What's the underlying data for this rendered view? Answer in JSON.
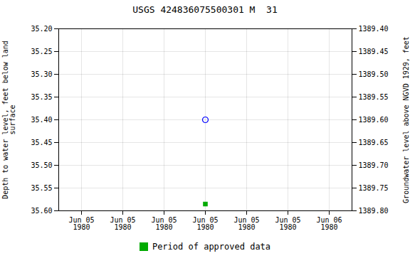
{
  "chart_data": {
    "type": "scatter",
    "title": "USGS 424836075500301 M  31",
    "categories": [
      "Jun 05\n1980",
      "Jun 05\n1980",
      "Jun 05\n1980",
      "Jun 05\n1980",
      "Jun 05\n1980",
      "Jun 05\n1980",
      "Jun 06\n1980"
    ],
    "ylabel": "Depth to water level, feet below land\nsurface",
    "y2label": "Groundwater level above NGVD 1929, feet",
    "ylim": [
      35.6,
      35.2
    ],
    "yticks": [
      {
        "value": 35.2,
        "label": "35.20"
      },
      35.25,
      {
        "value": 35.3,
        "label": "35.30"
      },
      35.35,
      {
        "value": 35.4,
        "label": "35.40"
      },
      35.45,
      {
        "value": 35.5,
        "label": "35.50"
      },
      35.55,
      {
        "value": 35.6,
        "label": "35.60"
      }
    ],
    "y2lim": [
      1389.8,
      1389.4
    ],
    "y2ticks": [
      {
        "value": 1389.8,
        "label": "1389.80"
      },
      1389.75,
      {
        "value": 1389.7,
        "label": "1389.70"
      },
      1389.65,
      {
        "value": 1389.6,
        "label": "1389.60"
      },
      1389.55,
      {
        "value": 1389.5,
        "label": "1389.50"
      },
      1389.45,
      {
        "value": 1389.4,
        "label": "1389.40"
      }
    ],
    "grid": true,
    "legend": "bottom",
    "series": [
      {
        "color": "blue",
        "marker": "open circle",
        "values": [
          null,
          null,
          null,
          35.4,
          null,
          null,
          null
        ]
      },
      {
        "name": "Period of approved data",
        "color": "#00aa00",
        "marker": "square",
        "values": [
          null,
          null,
          null,
          35.585,
          null,
          null,
          null
        ]
      }
    ]
  }
}
